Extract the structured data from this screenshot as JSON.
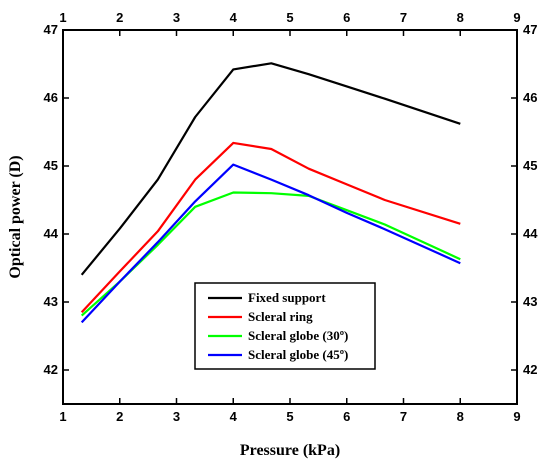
{
  "chart_data": {
    "type": "line",
    "xlabel": "Pressure (kPa)",
    "ylabel": "Optical power (D)",
    "xlim": [
      1,
      9
    ],
    "ylim": [
      41.5,
      47
    ],
    "xticks": [
      "1",
      "2",
      "3",
      "4",
      "5",
      "6",
      "7",
      "8",
      "9"
    ],
    "yticks": [
      "42",
      "43",
      "44",
      "45",
      "46",
      "47"
    ],
    "x": [
      1.33,
      2.0,
      2.67,
      3.33,
      4.0,
      4.67,
      5.33,
      6.0,
      6.67,
      8.0
    ],
    "series": [
      {
        "name": "Fixed support",
        "color": "#000000",
        "values": [
          43.4,
          44.08,
          44.8,
          45.72,
          46.42,
          46.51,
          46.35,
          46.17,
          45.99,
          45.62
        ]
      },
      {
        "name": "Scleral ring",
        "color": "#ff0000",
        "values": [
          42.85,
          43.45,
          44.04,
          44.8,
          45.34,
          45.25,
          44.96,
          44.73,
          44.5,
          44.15
        ]
      },
      {
        "name": "Scleral globe (30º)",
        "color": "#00ff00",
        "values": [
          42.8,
          43.3,
          43.84,
          44.4,
          44.61,
          44.6,
          44.56,
          44.35,
          44.14,
          43.63
        ]
      },
      {
        "name": "Scleral globe (45º)",
        "color": "#0000ff",
        "values": [
          42.7,
          43.3,
          43.88,
          44.48,
          45.02,
          44.8,
          44.57,
          44.31,
          44.07,
          43.57
        ]
      }
    ],
    "grid": false,
    "legend_placement": "bottom-center"
  }
}
